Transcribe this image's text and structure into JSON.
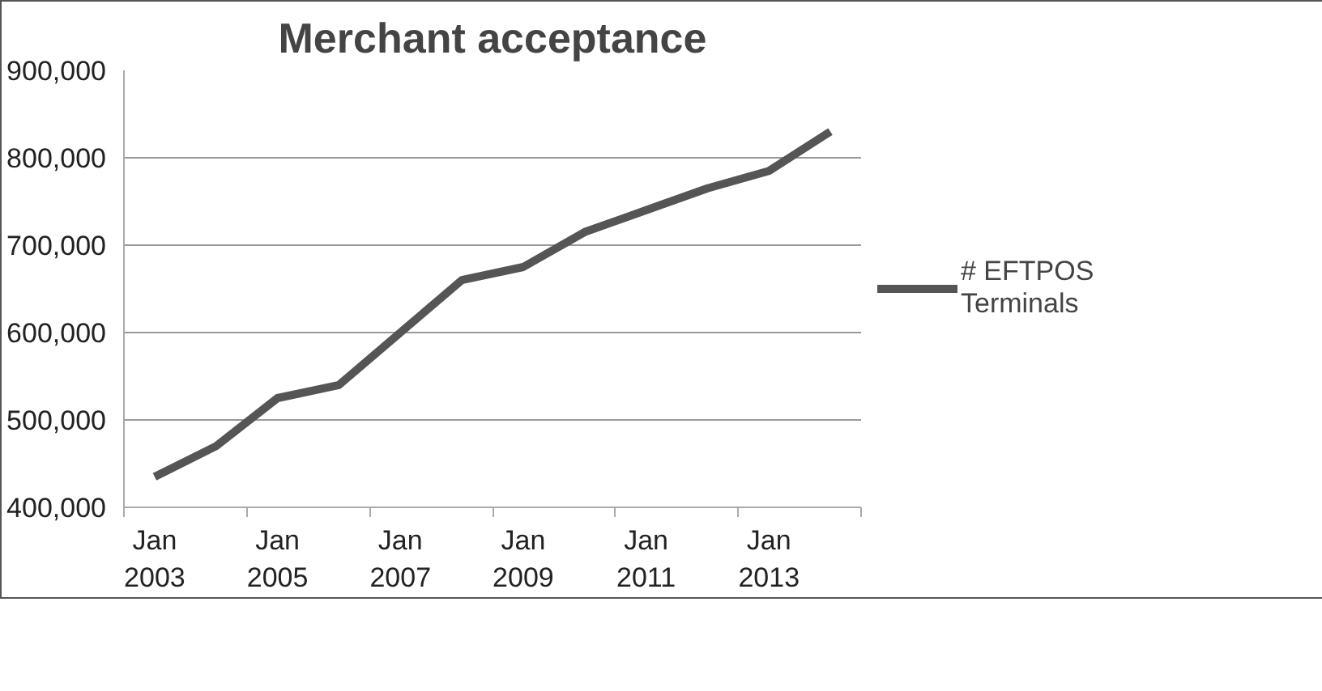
{
  "chart_data": {
    "type": "line",
    "title": "Merchant acceptance",
    "categories": [
      "Jan 2003",
      null,
      "Jan 2005",
      null,
      "Jan 2007",
      null,
      "Jan 2009",
      null,
      "Jan 2011",
      null,
      "Jan 2013",
      null
    ],
    "series": [
      {
        "name": "# EFTPOS Terminals",
        "color": "#555555",
        "values": [
          435000,
          470000,
          525000,
          540000,
          600000,
          660000,
          675000,
          715000,
          740000,
          765000,
          785000,
          830000
        ]
      }
    ],
    "ylim": [
      400000,
      900000
    ],
    "yticks": [
      {
        "value": 400000,
        "label": "400,000"
      },
      {
        "value": 500000,
        "label": "500,000"
      },
      {
        "value": 600000,
        "label": "600,000"
      },
      {
        "value": 700000,
        "label": "700,000"
      },
      {
        "value": 800000,
        "label": "800,000"
      },
      {
        "value": 900000,
        "label": "900,000"
      }
    ],
    "grid": "y",
    "legend": "right",
    "marker": "none",
    "line_style": "solid"
  }
}
